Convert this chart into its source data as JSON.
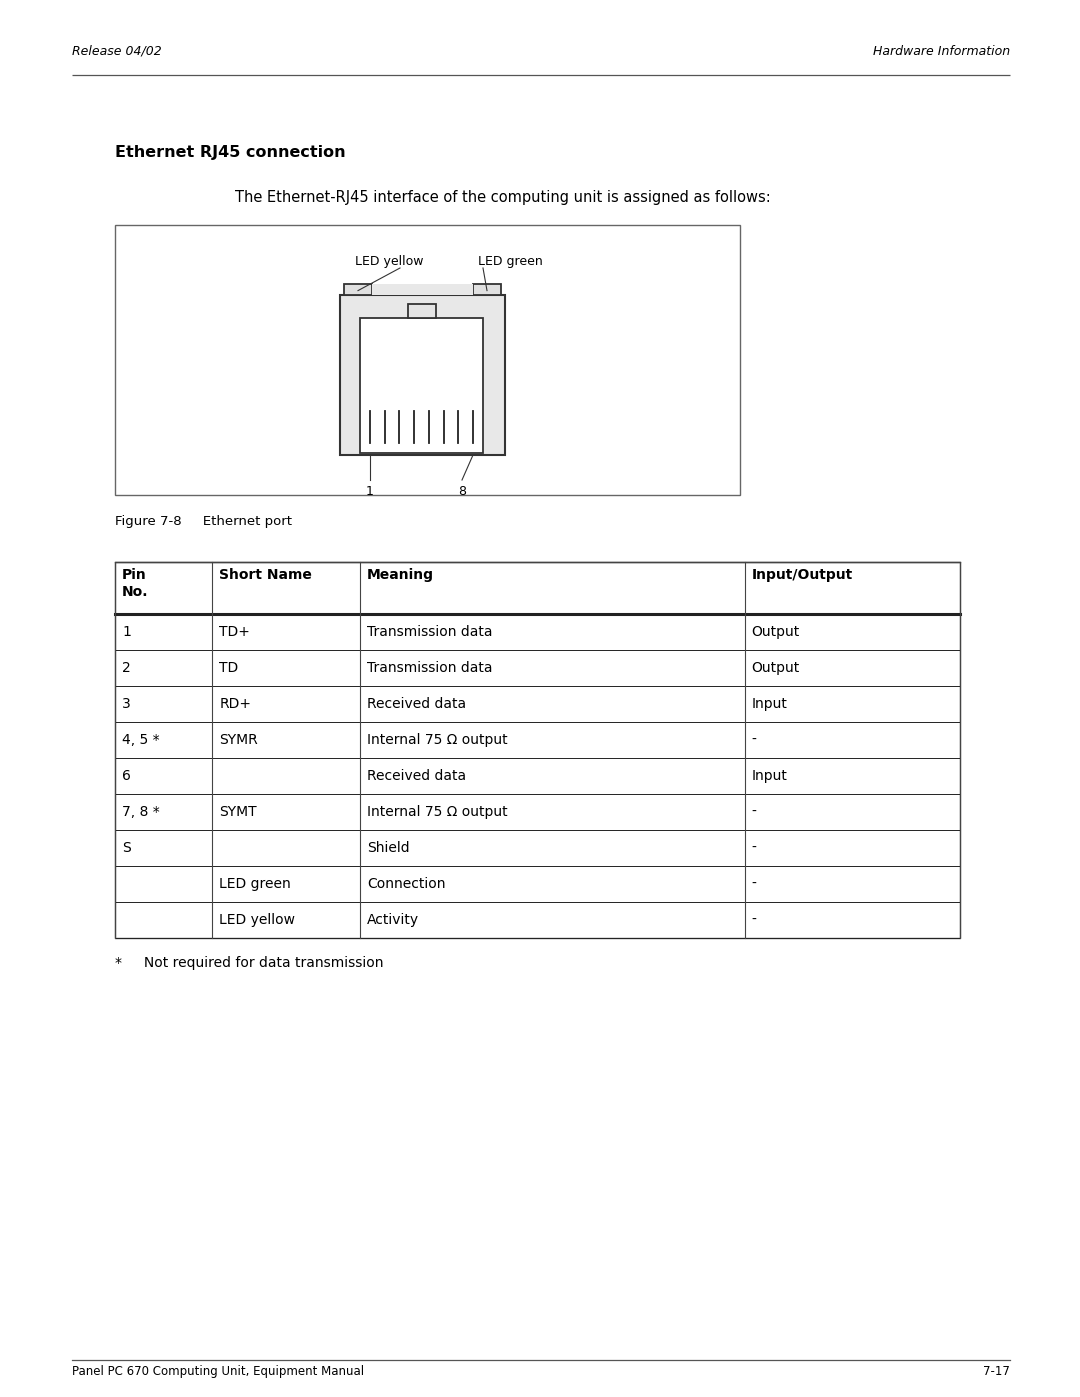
{
  "page_title_left": "Release 04/02",
  "page_title_right": "Hardware Information",
  "section_title": "Ethernet RJ45 connection",
  "intro_text": "The Ethernet-RJ45 interface of the computing unit is assigned as follows:",
  "figure_caption": "Figure 7-8     Ethernet port",
  "footnote": "*     Not required for data transmission",
  "footer_left": "Panel PC 670 Computing Unit, Equipment Manual",
  "footer_right": "7-17",
  "table_headers": [
    "Pin\nNo.",
    "Short Name",
    "Meaning",
    "Input/Output"
  ],
  "table_rows": [
    [
      "1",
      "TD+",
      "Transmission data",
      "Output"
    ],
    [
      "2",
      "TD",
      "Transmission data",
      "Output"
    ],
    [
      "3",
      "RD+",
      "Received data",
      "Input"
    ],
    [
      "4, 5 *",
      "SYMR",
      "Internal 75 Ω output",
      "-"
    ],
    [
      "6",
      "",
      "Received data",
      "Input"
    ],
    [
      "7, 8 *",
      "SYMT",
      "Internal 75 Ω output",
      "-"
    ],
    [
      "S",
      "",
      "Shield",
      "-"
    ],
    [
      "",
      "LED green",
      "Connection",
      "-"
    ],
    [
      "",
      "LED yellow",
      "Activity",
      "-"
    ]
  ],
  "bg_color": "#ffffff",
  "text_color": "#000000"
}
